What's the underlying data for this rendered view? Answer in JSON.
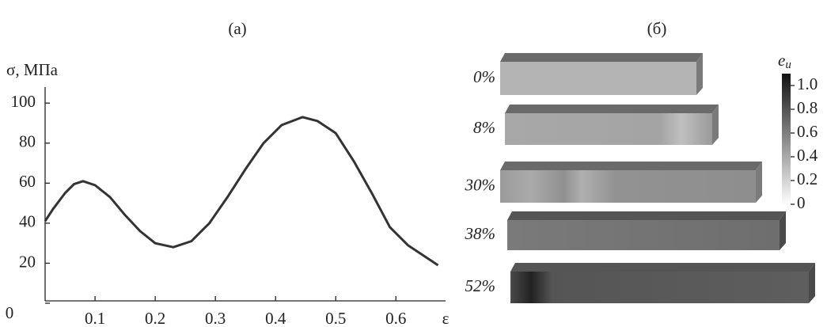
{
  "chart_data": [
    {
      "type": "line",
      "title": "(а)",
      "y_label": "σ, МПа",
      "x_label": "ε",
      "x": [
        0.017,
        0.03,
        0.05,
        0.065,
        0.08,
        0.1,
        0.125,
        0.15,
        0.175,
        0.2,
        0.23,
        0.26,
        0.29,
        0.32,
        0.35,
        0.38,
        0.41,
        0.445,
        0.47,
        0.5,
        0.53,
        0.56,
        0.59,
        0.62,
        0.65,
        0.67
      ],
      "values": [
        41,
        47,
        55,
        59.5,
        61,
        59,
        53,
        44,
        36,
        30,
        28,
        31,
        40,
        53,
        67,
        80,
        89,
        93,
        91,
        85,
        71,
        55,
        38,
        29,
        23,
        19
      ],
      "color": "#333333",
      "xlim": [
        0.017,
        0.672
      ],
      "ylim": [
        0,
        108
      ],
      "xticks": [
        0.1,
        0.2,
        0.3,
        0.4,
        0.5,
        0.6
      ],
      "yticks": [
        0,
        20,
        40,
        60,
        80,
        100
      ]
    },
    {
      "type": "specimens",
      "title": "(б)",
      "categories": [
        "0%",
        "8%",
        "30%",
        "38%",
        "52%"
      ],
      "colorbar_label": "e",
      "colorbar_label_subscript": "и",
      "clim": [
        0,
        1.1
      ],
      "cticks": [
        0,
        0.2,
        0.4,
        0.6,
        0.8,
        {
          "value": 1,
          "label": "1.0"
        }
      ]
    }
  ]
}
